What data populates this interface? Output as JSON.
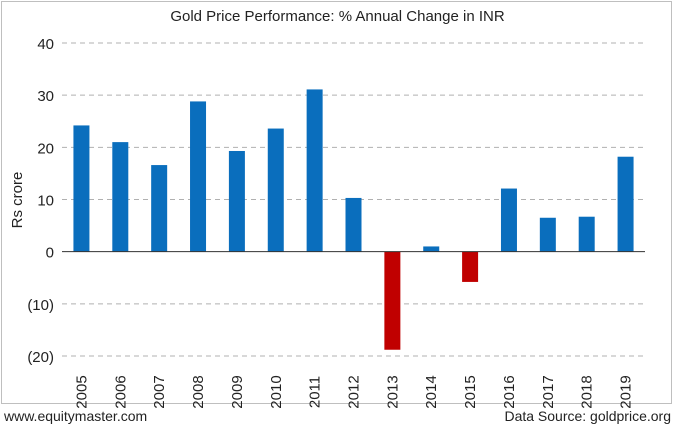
{
  "chart_data": {
    "type": "bar",
    "title": "Gold Price Performance: % Annual Change in INR",
    "xlabel": "",
    "ylabel": "Rs crore",
    "categories": [
      "2005",
      "2006",
      "2007",
      "2008",
      "2009",
      "2010",
      "2011",
      "2012",
      "2013",
      "2014",
      "2015",
      "2016",
      "2017",
      "2018",
      "2019"
    ],
    "values": [
      24.2,
      21.0,
      16.6,
      28.8,
      19.3,
      23.6,
      31.1,
      10.3,
      -18.8,
      1.0,
      -5.8,
      12.1,
      6.5,
      6.7,
      18.2
    ],
    "ylim": [
      -20,
      40
    ],
    "yticks": [
      -20,
      -10,
      0,
      10,
      20,
      30,
      40
    ],
    "ytick_labels": [
      "(20)",
      "(10)",
      "0",
      "10",
      "20",
      "30",
      "40"
    ],
    "grid": true,
    "colors": {
      "positive": "#0a6ebd",
      "negative": "#c00000"
    }
  },
  "footer": {
    "source_left": "www.equitymaster.com",
    "source_right": "Data Source: goldprice.org"
  }
}
